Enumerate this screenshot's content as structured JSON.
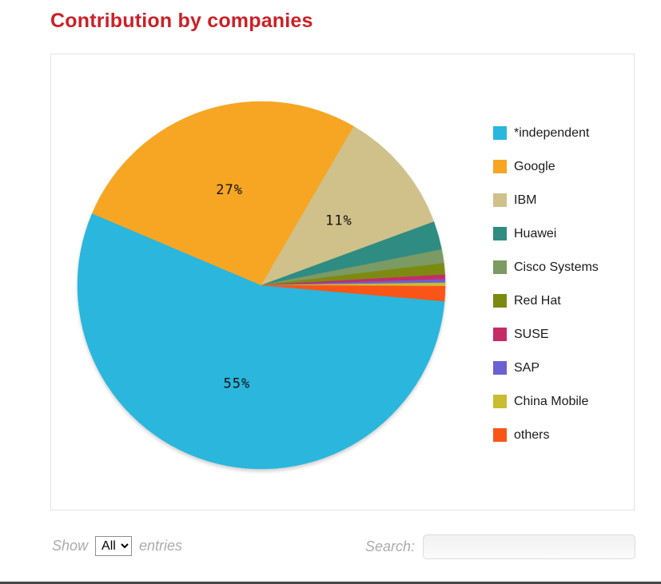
{
  "page": {
    "title": "Contribution by companies"
  },
  "chart_data": {
    "type": "pie",
    "title": "Contribution by companies",
    "legend_position": "right",
    "start_angle": 95,
    "label_threshold_percent": 5,
    "label_radius_ratio": 0.55,
    "slices": [
      {
        "label": "*independent",
        "value": 55,
        "percent_label": "55%",
        "color": "#2ab6dd"
      },
      {
        "label": "Google",
        "value": 27,
        "percent_label": "27%",
        "color": "#f6a623"
      },
      {
        "label": "IBM",
        "value": 11,
        "percent_label": "11%",
        "color": "#cfc189"
      },
      {
        "label": "Huawei",
        "value": 2.5,
        "color": "#2e8c82"
      },
      {
        "label": "Cisco Systems",
        "value": 1.2,
        "color": "#7c9a63"
      },
      {
        "label": "Red Hat",
        "value": 1.0,
        "color": "#7d8a12"
      },
      {
        "label": "SUSE",
        "value": 0.4,
        "color": "#c72b67"
      },
      {
        "label": "SAP",
        "value": 0.3,
        "color": "#6a61d2"
      },
      {
        "label": "China Mobile",
        "value": 0.3,
        "color": "#c9bb32"
      },
      {
        "label": "others",
        "value": 1.3,
        "color": "#fa5517"
      }
    ]
  },
  "controls": {
    "show_label": "Show",
    "entries_label": "entries",
    "page_length_value": "All",
    "search_label": "Search:",
    "search_value": ""
  },
  "colors": {
    "title_text": "#cb2027",
    "panel_border": "#e4e4e4",
    "muted_text": "#ababab"
  }
}
